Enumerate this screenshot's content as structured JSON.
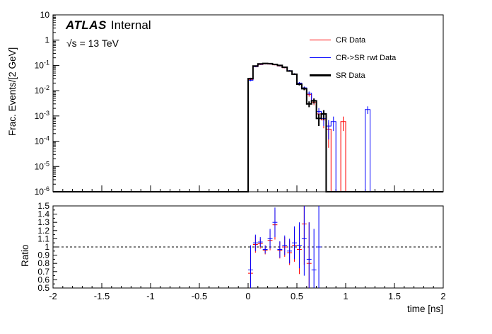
{
  "header": {
    "experiment": "ATLAS",
    "status": "Internal",
    "energy": "√s = 13 TeV"
  },
  "legend": {
    "entries": [
      {
        "label": "CR Data",
        "color": "#ff0000",
        "line_width": 1
      },
      {
        "label": "CR->SR rwt Data",
        "color": "#0000ff",
        "line_width": 1
      },
      {
        "label": "SR Data",
        "color": "#000000",
        "line_width": 2
      }
    ]
  },
  "chart_data": [
    {
      "type": "bar",
      "subtype": "step-histogram-log-y",
      "title": "",
      "xlabel": "",
      "ylabel": "Frac. Events/[2 GeV]",
      "xlim": [
        -2,
        2
      ],
      "ylog": true,
      "ylim": [
        1e-06,
        10
      ],
      "xticks": [
        -2,
        -1.5,
        -1,
        -0.5,
        0,
        0.5,
        1,
        1.5,
        2
      ],
      "ytick_exponents": [
        -6,
        -5,
        -4,
        -3,
        -2,
        -1,
        0,
        1
      ],
      "grid": false,
      "legend_position": "top-right-inside",
      "bin_width": 0.05,
      "bin_start": 0.0,
      "poisson_scale": 0.0002,
      "series": [
        {
          "name": "CR Data",
          "color": "#ff0000",
          "line_width": 1,
          "values": [
            0.027,
            0.089,
            0.108,
            0.114,
            0.112,
            0.105,
            0.095,
            0.081,
            0.061,
            0.045,
            0.019,
            0.012,
            0.007,
            0.0035,
            0.0012,
            0.0007,
            0.0003,
            0,
            0,
            0.0006,
            0,
            0,
            0,
            0,
            0
          ]
        },
        {
          "name": "CR->SR rwt Data",
          "color": "#0000ff",
          "line_width": 1,
          "values": [
            0.026,
            0.09,
            0.11,
            0.116,
            0.113,
            0.106,
            0.096,
            0.082,
            0.062,
            0.046,
            0.02,
            0.013,
            0.008,
            0.004,
            0.0015,
            0.0008,
            0.0004,
            0.0006,
            0,
            0,
            0,
            0,
            0,
            0,
            0.0018
          ]
        },
        {
          "name": "SR Data",
          "color": "#000000",
          "line_width": 2,
          "values": [
            0.03,
            0.095,
            0.115,
            0.12,
            0.118,
            0.11,
            0.1,
            0.085,
            0.06,
            0.045,
            0.018,
            0.012,
            0.003,
            0.004,
            0.0008,
            0.0012,
            0,
            0,
            0,
            0,
            0,
            0,
            0,
            0,
            0
          ]
        }
      ]
    },
    {
      "type": "scatter",
      "subtype": "ratio-panel",
      "xlabel": "time [ns]",
      "ylabel": "Ratio",
      "xlim": [
        -2,
        2
      ],
      "ylim": [
        0.5,
        1.5
      ],
      "xticks": [
        -2,
        -1.5,
        -1,
        -0.5,
        0,
        0.5,
        1,
        1.5,
        2
      ],
      "yticks": [
        0.5,
        0.6,
        0.7,
        0.8,
        0.9,
        1,
        1.1,
        1.2,
        1.3,
        1.4,
        1.5
      ],
      "refline": 1.0,
      "bin_width": 0.05,
      "series": [
        {
          "name": "CR Data / SR Data",
          "color": "#ff0000",
          "points": [
            [
              0.025,
              0.68,
              0.28
            ],
            [
              0.075,
              1.03,
              0.1
            ],
            [
              0.125,
              1.04,
              0.06
            ],
            [
              0.175,
              0.96,
              0.05
            ],
            [
              0.225,
              1.08,
              0.12
            ],
            [
              0.275,
              1.27,
              0.18
            ],
            [
              0.325,
              0.96,
              0.1
            ],
            [
              0.375,
              1.0,
              0.12
            ],
            [
              0.425,
              0.93,
              0.15
            ],
            [
              0.475,
              1.02,
              0.2
            ],
            [
              0.525,
              0.97,
              0.3
            ],
            [
              0.575,
              1.28,
              0.5
            ],
            [
              0.625,
              0.8,
              0.5
            ]
          ]
        },
        {
          "name": "CR->SR rwt Data / SR Data",
          "color": "#0000ff",
          "points": [
            [
              0.025,
              0.72,
              0.3
            ],
            [
              0.075,
              1.05,
              0.1
            ],
            [
              0.125,
              1.06,
              0.06
            ],
            [
              0.175,
              0.97,
              0.05
            ],
            [
              0.225,
              1.1,
              0.12
            ],
            [
              0.275,
              1.3,
              0.18
            ],
            [
              0.325,
              0.97,
              0.1
            ],
            [
              0.375,
              1.02,
              0.12
            ],
            [
              0.425,
              0.95,
              0.15
            ],
            [
              0.475,
              1.05,
              0.2
            ],
            [
              0.525,
              1.02,
              0.28
            ],
            [
              0.575,
              1.1,
              0.45
            ],
            [
              0.625,
              0.85,
              0.45
            ],
            [
              0.675,
              0.72,
              0.5
            ],
            [
              0.725,
              1.0,
              0.6
            ]
          ]
        }
      ]
    }
  ]
}
